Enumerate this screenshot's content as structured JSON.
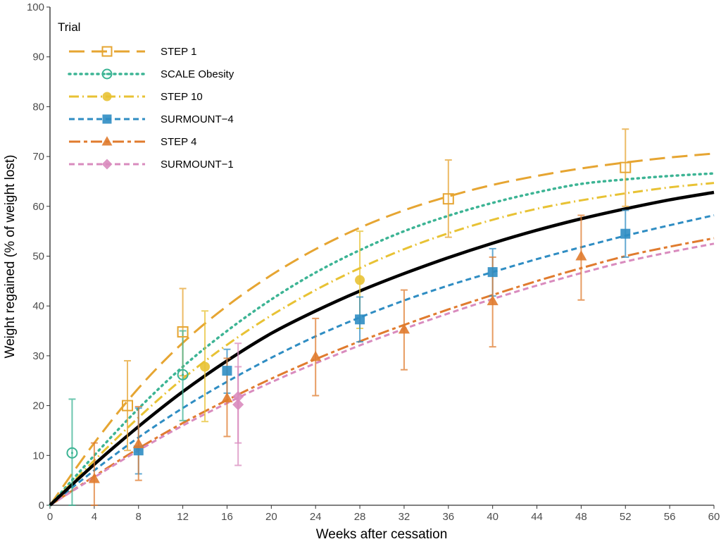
{
  "chart_data": {
    "type": "line",
    "xlabel": "Weeks after cessation",
    "ylabel": "Weight regained (% of weight lost)",
    "xlim": [
      0,
      60
    ],
    "ylim": [
      0,
      100
    ],
    "xticks": [
      0,
      4,
      8,
      12,
      16,
      20,
      24,
      28,
      32,
      36,
      40,
      44,
      48,
      52,
      56,
      60
    ],
    "yticks": [
      0,
      10,
      20,
      30,
      40,
      50,
      60,
      70,
      80,
      90,
      100
    ],
    "grid": false,
    "legend": {
      "title": "Trial",
      "position": "top-left"
    },
    "overall_curve": {
      "color": "#000000",
      "points": [
        [
          0,
          0
        ],
        [
          2,
          4.2
        ],
        [
          4,
          8.3
        ],
        [
          6,
          12.2
        ],
        [
          8,
          16
        ],
        [
          10,
          19.6
        ],
        [
          12,
          23.1
        ],
        [
          14,
          26.4
        ],
        [
          16,
          29.6
        ],
        [
          18,
          32.6
        ],
        [
          20,
          35.5
        ],
        [
          22,
          38.3
        ],
        [
          24,
          40.9
        ],
        [
          26,
          43.3
        ],
        [
          28,
          45.7
        ],
        [
          30,
          47.9
        ],
        [
          32,
          50
        ],
        [
          36,
          53.9
        ],
        [
          40,
          57.3
        ],
        [
          44,
          60.4
        ],
        [
          48,
          63
        ],
        [
          52,
          65.5
        ],
        [
          56,
          67.6
        ],
        [
          60,
          62.8
        ]
      ]
    },
    "series": [
      {
        "name": "STEP 1",
        "color": "#E6A532",
        "line": "longdash",
        "marker": "open-square",
        "points": [
          {
            "x": 7,
            "y": 20,
            "lo": 11,
            "hi": 29
          },
          {
            "x": 12,
            "y": 34.8,
            "lo": 26,
            "hi": 43.5
          },
          {
            "x": 36,
            "y": 61.5,
            "lo": 53.8,
            "hi": 69.3
          },
          {
            "x": 52,
            "y": 67.8,
            "lo": 60,
            "hi": 75.5
          }
        ],
        "curve": [
          [
            0,
            0
          ],
          [
            4,
            12.5
          ],
          [
            8,
            23.5
          ],
          [
            12,
            32.6
          ],
          [
            16,
            40
          ],
          [
            20,
            46.2
          ],
          [
            24,
            51.4
          ],
          [
            28,
            55.7
          ],
          [
            32,
            59.2
          ],
          [
            36,
            62
          ],
          [
            40,
            64.3
          ],
          [
            44,
            66.1
          ],
          [
            48,
            67.6
          ],
          [
            52,
            68.8
          ],
          [
            56,
            69.8
          ],
          [
            60,
            70.6
          ]
        ]
      },
      {
        "name": "SCALE Obesity",
        "color": "#3CB494",
        "line": "dotted",
        "marker": "open-circle-dot",
        "points": [
          {
            "x": 2,
            "y": 10.5,
            "lo": 0,
            "hi": 21.3
          },
          {
            "x": 12,
            "y": 26.2,
            "lo": 17,
            "hi": 35
          }
        ],
        "curve": [
          [
            0,
            0
          ],
          [
            4,
            10
          ],
          [
            8,
            19.4
          ],
          [
            12,
            27.8
          ],
          [
            16,
            35
          ],
          [
            20,
            41.3
          ],
          [
            24,
            46.7
          ],
          [
            28,
            51.2
          ],
          [
            32,
            55
          ],
          [
            36,
            58.1
          ],
          [
            40,
            60.7
          ],
          [
            44,
            62.8
          ],
          [
            48,
            64.5
          ],
          [
            52,
            65.4
          ],
          [
            56,
            66.1
          ],
          [
            60,
            66.6
          ]
        ]
      },
      {
        "name": "STEP 10",
        "color": "#E8C234",
        "line": "dotdash",
        "marker": "filled-circle",
        "points": [
          {
            "x": 14,
            "y": 27.8,
            "lo": 16.8,
            "hi": 39
          },
          {
            "x": 28,
            "y": 45.2,
            "lo": 35.5,
            "hi": 55
          }
        ],
        "curve": [
          [
            0,
            0
          ],
          [
            4,
            9
          ],
          [
            8,
            17.6
          ],
          [
            12,
            25.4
          ],
          [
            16,
            32.2
          ],
          [
            20,
            38.1
          ],
          [
            24,
            43.2
          ],
          [
            28,
            47.6
          ],
          [
            32,
            51.4
          ],
          [
            36,
            54.6
          ],
          [
            40,
            57.3
          ],
          [
            44,
            59.5
          ],
          [
            48,
            61.2
          ],
          [
            52,
            62.6
          ],
          [
            56,
            63.8
          ],
          [
            60,
            64.7
          ]
        ]
      },
      {
        "name": "SURMOUNT−4",
        "color": "#2F8DC3",
        "line": "dashed",
        "marker": "filled-square",
        "points": [
          {
            "x": 8,
            "y": 11,
            "lo": 6.3,
            "hi": 19.5
          },
          {
            "x": 16,
            "y": 27,
            "lo": 22.5,
            "hi": 31.3
          },
          {
            "x": 28,
            "y": 37.3,
            "lo": 32.8,
            "hi": 41.8
          },
          {
            "x": 40,
            "y": 46.8,
            "lo": 42,
            "hi": 51.5
          },
          {
            "x": 52,
            "y": 54.5,
            "lo": 49.8,
            "hi": 59.2
          }
        ],
        "curve": [
          [
            0,
            0
          ],
          [
            4,
            7
          ],
          [
            8,
            13.6
          ],
          [
            12,
            19.5
          ],
          [
            16,
            24.8
          ],
          [
            20,
            29.6
          ],
          [
            24,
            33.9
          ],
          [
            28,
            37.7
          ],
          [
            32,
            41.1
          ],
          [
            36,
            44.1
          ],
          [
            40,
            46.8
          ],
          [
            44,
            49.4
          ],
          [
            48,
            51.8
          ],
          [
            52,
            54.1
          ],
          [
            56,
            56.2
          ],
          [
            60,
            58.2
          ]
        ]
      },
      {
        "name": "STEP 4",
        "color": "#E07B2E",
        "line": "twodash",
        "marker": "filled-triangle",
        "points": [
          {
            "x": 4,
            "y": 5.3,
            "lo": 0,
            "hi": 12.5
          },
          {
            "x": 8,
            "y": 12.3,
            "lo": 5,
            "hi": 19.8
          },
          {
            "x": 16,
            "y": 21.5,
            "lo": 13.8,
            "hi": 29.5
          },
          {
            "x": 24,
            "y": 29.8,
            "lo": 22,
            "hi": 37.5
          },
          {
            "x": 32,
            "y": 35.3,
            "lo": 27.2,
            "hi": 43.2
          },
          {
            "x": 40,
            "y": 41,
            "lo": 31.8,
            "hi": 49.8
          },
          {
            "x": 48,
            "y": 50,
            "lo": 41.2,
            "hi": 58.2
          }
        ],
        "curve": [
          [
            0,
            0
          ],
          [
            4,
            5.8
          ],
          [
            8,
            11.4
          ],
          [
            12,
            16.5
          ],
          [
            16,
            21.1
          ],
          [
            20,
            25.4
          ],
          [
            24,
            29.3
          ],
          [
            28,
            32.9
          ],
          [
            32,
            36.2
          ],
          [
            36,
            39.3
          ],
          [
            40,
            42.2
          ],
          [
            44,
            45
          ],
          [
            48,
            47.6
          ],
          [
            52,
            50
          ],
          [
            56,
            51.9
          ],
          [
            60,
            53.6
          ]
        ]
      },
      {
        "name": "SURMOUNT−1",
        "color": "#D98BBE",
        "line": "dashed",
        "marker": "filled-diamond",
        "points": [
          {
            "x": 17,
            "y": 20.2,
            "lo": 12.5,
            "hi": 27.8
          },
          {
            "x": 17,
            "y": 21.8,
            "lo": 8,
            "hi": 32.5
          }
        ],
        "curve": [
          [
            0,
            0
          ],
          [
            4,
            5.6
          ],
          [
            8,
            11
          ],
          [
            12,
            16
          ],
          [
            16,
            20.5
          ],
          [
            20,
            24.7
          ],
          [
            24,
            28.5
          ],
          [
            28,
            32.1
          ],
          [
            32,
            35.4
          ],
          [
            36,
            38.5
          ],
          [
            40,
            41.4
          ],
          [
            44,
            44.1
          ],
          [
            48,
            46.6
          ],
          [
            52,
            48.9
          ],
          [
            56,
            50.8
          ],
          [
            60,
            52.5
          ]
        ]
      }
    ]
  }
}
